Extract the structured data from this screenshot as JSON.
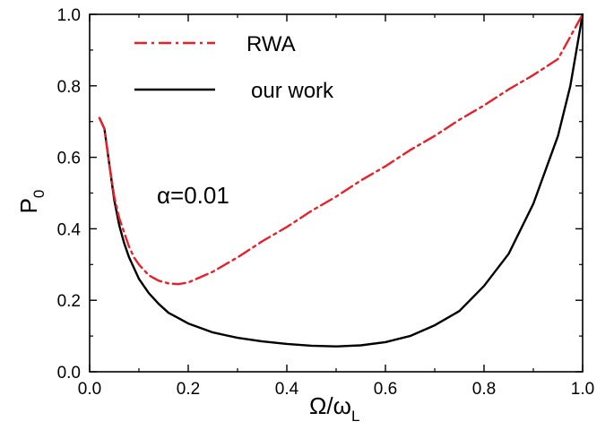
{
  "chart_data": {
    "type": "line",
    "xlim": [
      0.0,
      1.0
    ],
    "ylim": [
      0.0,
      1.0
    ],
    "xticks": [
      "0.0",
      "0.2",
      "0.4",
      "0.6",
      "0.8",
      "1.0"
    ],
    "yticks": [
      "0.0",
      "0.2",
      "0.4",
      "0.6",
      "0.8",
      "1.0"
    ],
    "xlabel": {
      "main": "Ω/ω",
      "sub": "L"
    },
    "ylabel": {
      "main": "P",
      "sub": "0"
    },
    "annotation": "α=0.01",
    "legend_position": "top-left",
    "grid": false,
    "series": [
      {
        "name": "RWA",
        "color": "#e8202a",
        "style": "dash-dot",
        "points": [
          [
            0.02,
            0.71
          ],
          [
            0.03,
            0.68
          ],
          [
            0.04,
            0.58
          ],
          [
            0.05,
            0.49
          ],
          [
            0.06,
            0.43
          ],
          [
            0.07,
            0.39
          ],
          [
            0.08,
            0.35
          ],
          [
            0.09,
            0.32
          ],
          [
            0.1,
            0.3
          ],
          [
            0.12,
            0.27
          ],
          [
            0.14,
            0.255
          ],
          [
            0.16,
            0.247
          ],
          [
            0.18,
            0.245
          ],
          [
            0.2,
            0.25
          ],
          [
            0.25,
            0.28
          ],
          [
            0.3,
            0.32
          ],
          [
            0.35,
            0.365
          ],
          [
            0.4,
            0.405
          ],
          [
            0.45,
            0.45
          ],
          [
            0.5,
            0.49
          ],
          [
            0.55,
            0.535
          ],
          [
            0.6,
            0.575
          ],
          [
            0.65,
            0.62
          ],
          [
            0.7,
            0.66
          ],
          [
            0.75,
            0.705
          ],
          [
            0.8,
            0.745
          ],
          [
            0.85,
            0.79
          ],
          [
            0.9,
            0.83
          ],
          [
            0.95,
            0.875
          ],
          [
            1.0,
            1.0
          ]
        ]
      },
      {
        "name": "our work",
        "color": "#000000",
        "style": "solid",
        "points": [
          [
            0.02,
            0.71
          ],
          [
            0.03,
            0.68
          ],
          [
            0.04,
            0.58
          ],
          [
            0.05,
            0.48
          ],
          [
            0.06,
            0.41
          ],
          [
            0.07,
            0.36
          ],
          [
            0.08,
            0.32
          ],
          [
            0.09,
            0.29
          ],
          [
            0.1,
            0.26
          ],
          [
            0.12,
            0.22
          ],
          [
            0.14,
            0.19
          ],
          [
            0.16,
            0.165
          ],
          [
            0.18,
            0.15
          ],
          [
            0.2,
            0.135
          ],
          [
            0.25,
            0.11
          ],
          [
            0.3,
            0.095
          ],
          [
            0.35,
            0.085
          ],
          [
            0.4,
            0.078
          ],
          [
            0.45,
            0.073
          ],
          [
            0.5,
            0.071
          ],
          [
            0.55,
            0.074
          ],
          [
            0.6,
            0.083
          ],
          [
            0.65,
            0.1
          ],
          [
            0.7,
            0.13
          ],
          [
            0.75,
            0.17
          ],
          [
            0.8,
            0.24
          ],
          [
            0.85,
            0.33
          ],
          [
            0.9,
            0.47
          ],
          [
            0.95,
            0.66
          ],
          [
            0.975,
            0.8
          ],
          [
            1.0,
            1.0
          ]
        ]
      }
    ]
  }
}
